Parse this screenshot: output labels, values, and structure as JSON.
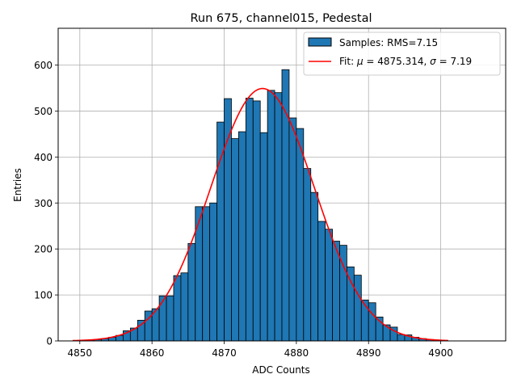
{
  "chart_data": {
    "type": "bar",
    "title": "Run 675, channel015, Pedestal",
    "xlabel": "ADC Counts",
    "ylabel": "Entries",
    "xlim": [
      4847,
      4909
    ],
    "ylim": [
      0,
      680
    ],
    "xticks": [
      4850,
      4860,
      4870,
      4880,
      4890,
      4900
    ],
    "yticks": [
      0,
      100,
      200,
      300,
      400,
      500,
      600
    ],
    "grid": true,
    "legend_position": "top-right",
    "legend": [
      {
        "label": "Samples: RMS=7.15",
        "kind": "patch"
      },
      {
        "label_prefix": "Fit: ",
        "mu_symbol": "μ",
        "label_middle": " = 4875.314, ",
        "sigma_symbol": "σ",
        "label_suffix": " = 7.19",
        "kind": "line"
      }
    ],
    "bar_color": "#1f77b4",
    "bar_edge_color": "#000000",
    "fit_color": "#ff0000",
    "histogram": {
      "bin_width": 1,
      "bin_left_edges": [
        4849,
        4850,
        4851,
        4852,
        4853,
        4854,
        4855,
        4856,
        4857,
        4858,
        4859,
        4860,
        4861,
        4862,
        4863,
        4864,
        4865,
        4866,
        4867,
        4868,
        4869,
        4870,
        4871,
        4872,
        4873,
        4874,
        4875,
        4876,
        4877,
        4878,
        4879,
        4880,
        4881,
        4882,
        4883,
        4884,
        4885,
        4886,
        4887,
        4888,
        4889,
        4890,
        4891,
        4892,
        4893,
        4894,
        4895,
        4896,
        4897,
        4898,
        4899,
        4900
      ],
      "counts": [
        0,
        1,
        2,
        3,
        5,
        8,
        12,
        22,
        28,
        45,
        65,
        70,
        98,
        98,
        142,
        148,
        212,
        292,
        292,
        300,
        476,
        527,
        440,
        455,
        528,
        522,
        453,
        545,
        540,
        590,
        485,
        462,
        375,
        323,
        260,
        243,
        217,
        208,
        161,
        143,
        89,
        83,
        52,
        35,
        30,
        14,
        13,
        8,
        5,
        3,
        2,
        1
      ]
    },
    "fit": {
      "mu": 4875.314,
      "sigma": 7.19,
      "amplitude": 549,
      "x_range": [
        4849,
        4901
      ]
    }
  }
}
